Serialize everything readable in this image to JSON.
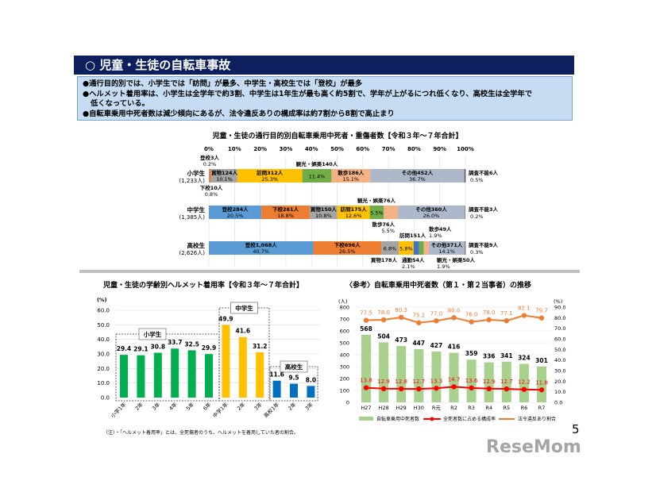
{
  "header": {
    "title": "○ 児童・生徒の自転車事故"
  },
  "summary": [
    "●通行目的別では、小学生では「訪問」が最多、中学生・高校生では「登校」が最多",
    "●ヘルメット着用率は、小学生は全学年で約3割、中学生は1年生が最も高く約5割で、学年が上がるにつれ低くなり、高校生は全学年で",
    "低くなっている。",
    "●自転車乗用中死者数は減少傾向にあるが、法令違反ありの構成率は約7割から8割で高止まり"
  ],
  "note": "（注）・「ヘルメット着用率」とは、全死傷者のうち、ヘルメットを着用していた者の割合。",
  "page_number": "5",
  "watermark": "ReseMom",
  "chart_data": [
    {
      "type": "bar",
      "orientation": "horizontal-stacked-100",
      "title": "児童・生徒の通行目的別自転車乗用中死者・重傷者数【令和３年～７年合計】",
      "xlim": [
        0,
        100
      ],
      "tick_labels": [
        "0%",
        "10%",
        "20%",
        "30%",
        "40%",
        "50%",
        "60%",
        "70%",
        "80%",
        "90%",
        "100%"
      ],
      "unit": "人",
      "colors": {
        "登校": "#5b9bd5",
        "下校": "#ed7d31",
        "買物": "#a5a5a5",
        "訪問": "#ffc000",
        "通勤": "#4472c4",
        "観光・娯楽": "#70ad47",
        "散歩": "#f4b183",
        "その他": "#adb9ca",
        "調査不能": "#595959"
      },
      "rows": [
        {
          "label": "小学生",
          "total": "(1,233人)",
          "segments": [
            {
              "name": "登校",
              "count": "3",
              "pct": 0.2
            },
            {
              "name": "下校",
              "count": "10",
              "pct": 0.8
            },
            {
              "name": "買物",
              "count": "124",
              "pct": 10.1
            },
            {
              "name": "訪問",
              "count": "312",
              "pct": 25.3
            },
            {
              "name": "観光・娯楽",
              "count": "140",
              "pct": 11.4
            },
            {
              "name": "散歩",
              "count": "186",
              "pct": 15.1
            },
            {
              "name": "その他",
              "count": "452",
              "pct": 36.7
            },
            {
              "name": "調査不能",
              "count": "6",
              "pct": 0.5
            }
          ]
        },
        {
          "label": "中学生",
          "total": "(1,385人)",
          "segments": [
            {
              "name": "登校",
              "count": "284",
              "pct": 20.5
            },
            {
              "name": "下校",
              "count": "261",
              "pct": 18.8
            },
            {
              "name": "買物",
              "count": "150",
              "pct": 10.8
            },
            {
              "name": "訪問",
              "count": "175",
              "pct": 12.6
            },
            {
              "name": "観光・娯楽",
              "count": "76",
              "pct": 5.5
            },
            {
              "name": "散歩",
              "count": "76",
              "pct": 5.5
            },
            {
              "name": "その他",
              "count": "360",
              "pct": 26.0
            },
            {
              "name": "調査不能",
              "count": "3",
              "pct": 0.2
            }
          ]
        },
        {
          "label": "高校生",
          "total": "(2,626人)",
          "segments": [
            {
              "name": "登校",
              "count": "1,068",
              "pct": 40.7
            },
            {
              "name": "下校",
              "count": "696",
              "pct": 26.5
            },
            {
              "name": "買物",
              "count": "178",
              "pct": 6.8
            },
            {
              "name": "訪問",
              "count": "151",
              "pct": 5.8
            },
            {
              "name": "通勤",
              "count": "54",
              "pct": 2.1
            },
            {
              "name": "観光・娯楽",
              "count": "50",
              "pct": 1.9
            },
            {
              "name": "散歩",
              "count": "49",
              "pct": 1.9
            },
            {
              "name": "その他",
              "count": "371",
              "pct": 14.1
            },
            {
              "name": "調査不能",
              "count": "9",
              "pct": 0.3
            }
          ]
        }
      ]
    },
    {
      "type": "bar",
      "title": "児童・生徒の学齢別ヘルメット着用率【令和３年～７年合計】",
      "ylabel": "(%)",
      "ylim": [
        0,
        60
      ],
      "yticks": [
        "0.0",
        "10.0",
        "20.0",
        "30.0",
        "40.0",
        "50.0",
        "60.0"
      ],
      "grid": true,
      "categories": [
        "小学1年",
        "2年",
        "3年",
        "4年",
        "5年",
        "6年",
        "中学1年",
        "2年",
        "3年",
        "高校1年",
        "2年",
        "3年"
      ],
      "values": [
        29.4,
        29.1,
        30.8,
        33.7,
        32.5,
        29.9,
        49.9,
        41.6,
        31.2,
        11.6,
        9.5,
        8.0
      ],
      "groups": [
        {
          "label": "小学生",
          "color": "#00b050",
          "count": 6
        },
        {
          "label": "中学生",
          "color": "#ffc000",
          "count": 3
        },
        {
          "label": "高校生",
          "color": "#0070c0",
          "count": 3
        }
      ]
    },
    {
      "type": "bar+line",
      "title": "〈参考〉自転車乗用中死者数（第１・第２当事者）の推移",
      "ylabel_left": "(人)",
      "ylabel_right": "(%)",
      "ylim_left": [
        0,
        800
      ],
      "ylim_right": [
        0,
        90
      ],
      "yticks_left": [
        "0",
        "100",
        "200",
        "300",
        "400",
        "500",
        "600",
        "700",
        "800"
      ],
      "yticks_right": [
        "0.0",
        "10.0",
        "20.0",
        "30.0",
        "40.0",
        "50.0",
        "60.0",
        "70.0",
        "80.0",
        "90.0"
      ],
      "categories": [
        "H27",
        "H28",
        "H29",
        "H30",
        "R元",
        "R2",
        "R3",
        "R4",
        "R5",
        "R6",
        "R7"
      ],
      "series": [
        {
          "name": "自転車乗用中死者数",
          "type": "bar",
          "axis": "left",
          "color": "#a9d18e",
          "values": [
            568,
            504,
            473,
            447,
            427,
            416,
            359,
            336,
            341,
            324,
            301
          ]
        },
        {
          "name": "全死者数に占める構成率",
          "type": "line",
          "axis": "right",
          "color": "#ff0000",
          "values": [
            13.8,
            12.9,
            12.8,
            12.7,
            13.3,
            14.7,
            13.6,
            12.9,
            12.7,
            12.2,
            11.8
          ]
        },
        {
          "name": "法令違反あり割合",
          "type": "line",
          "axis": "right",
          "color": "#ed7d31",
          "values": [
            77.5,
            78.0,
            80.3,
            75.2,
            77.0,
            80.0,
            76.0,
            78.0,
            77.1,
            82.1,
            79.7
          ]
        }
      ]
    }
  ]
}
